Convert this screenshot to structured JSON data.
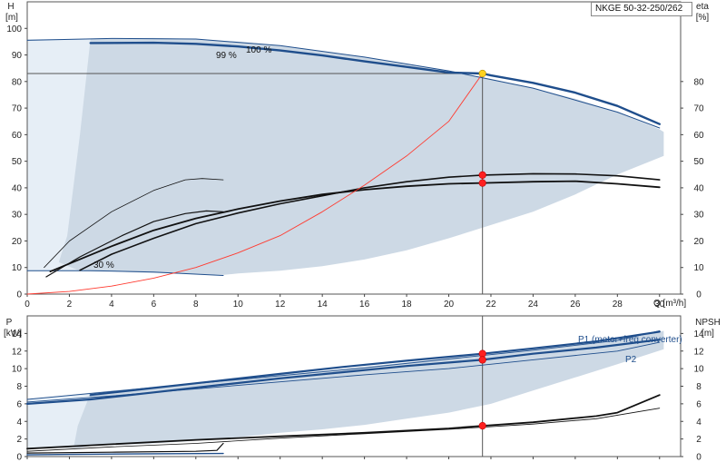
{
  "model": "NKGE 50-32-250/262",
  "colors": {
    "band": "#cdd9e5",
    "band_light": "#e6eef6",
    "curve_blue": "#1f4e8c",
    "curve_black": "#111111",
    "system_curve": "#ff3b30",
    "duty_point": "#ff2020",
    "eta_point": "#ffd21f"
  },
  "chart_data": [
    {
      "type": "line",
      "name": "head-efficiency",
      "ylabel": "H",
      "yunit": "[m]",
      "y2label": "eta",
      "y2unit": "[%]",
      "xlabel": "Q [m³/h]",
      "xlim": [
        0,
        31
      ],
      "ylim": [
        0,
        110
      ],
      "y2lim": [
        0,
        110
      ],
      "x_ticks": [
        "0",
        "2",
        "4",
        "6",
        "8",
        "10",
        "12",
        "14",
        "16",
        "18",
        "20",
        "22",
        "24",
        "26",
        "28",
        "30"
      ],
      "y_ticks": [
        "0",
        "10",
        "20",
        "30",
        "40",
        "50",
        "60",
        "70",
        "80",
        "90",
        "100"
      ],
      "y2_ticks": [
        "0",
        "10",
        "20",
        "30",
        "40",
        "50",
        "60",
        "70",
        "80"
      ],
      "annotations": {
        "eta99": "99 %",
        "eta100": "100 %",
        "eta30": "30 %"
      },
      "operating_band": {
        "upper": [
          [
            0,
            95.5
          ],
          [
            2,
            96
          ],
          [
            4,
            96.3
          ],
          [
            6,
            96.4
          ],
          [
            8,
            96
          ],
          [
            10,
            95
          ],
          [
            12,
            93.5
          ],
          [
            14,
            91.5
          ],
          [
            16,
            89.2
          ],
          [
            18,
            86.6
          ],
          [
            20,
            84
          ],
          [
            22,
            81
          ],
          [
            24,
            77.5
          ],
          [
            26,
            73.5
          ],
          [
            28,
            68.5
          ],
          [
            30,
            62
          ],
          [
            30.2,
            61
          ]
        ],
        "lower": [
          [
            30.2,
            52
          ],
          [
            28,
            45
          ],
          [
            26,
            37.5
          ],
          [
            24,
            31
          ],
          [
            22,
            26
          ],
          [
            20,
            21
          ],
          [
            18,
            16.5
          ],
          [
            16,
            13
          ],
          [
            14,
            10.5
          ],
          [
            12,
            8.8
          ],
          [
            10,
            7.8
          ],
          [
            9.3,
            7.2
          ],
          [
            8,
            7.6
          ],
          [
            6,
            8
          ],
          [
            4,
            8.5
          ],
          [
            2.9,
            8.6
          ],
          [
            2.5,
            8.7
          ],
          [
            0,
            8.8
          ]
        ],
        "light_corner": [
          [
            0,
            8.8
          ],
          [
            0,
            96
          ],
          [
            3,
            96
          ],
          [
            2.5,
            60
          ],
          [
            1.9,
            22
          ],
          [
            1.5,
            12
          ],
          [
            2.5,
            8.7
          ]
        ]
      },
      "series": [
        {
          "name": "100 %",
          "color": "#1f4e8c",
          "width": 2.4,
          "points": [
            [
              3,
              94.5
            ],
            [
              6,
              94.6
            ],
            [
              8,
              94.2
            ],
            [
              10,
              93.2
            ],
            [
              12,
              91.7
            ],
            [
              14,
              89.8
            ],
            [
              16,
              87.6
            ],
            [
              18,
              85.5
            ],
            [
              20,
              83.4
            ],
            [
              21.6,
              83
            ],
            [
              22,
              82.3
            ],
            [
              24,
              79.5
            ],
            [
              26,
              75.8
            ],
            [
              28,
              70.8
            ],
            [
              30,
              64
            ]
          ]
        },
        {
          "name": "max",
          "color": "#1f4e8c",
          "width": 1,
          "points": [
            [
              0,
              95.5
            ],
            [
              4,
              96.2
            ],
            [
              8,
              96
            ],
            [
              12,
              93.5
            ],
            [
              16,
              89.2
            ],
            [
              20,
              84
            ],
            [
              24,
              77.5
            ],
            [
              28,
              68.5
            ],
            [
              30,
              62.5
            ]
          ]
        },
        {
          "name": "min-head",
          "color": "#1f4e8c",
          "width": 1,
          "points": [
            [
              0,
              8.8
            ],
            [
              3,
              8.8
            ],
            [
              6,
              8.3
            ],
            [
              9.3,
              7
            ]
          ]
        },
        {
          "name": "eta-main",
          "color": "#111111",
          "width": 1.8,
          "points": [
            [
              1.1,
              8.5
            ],
            [
              4,
              18
            ],
            [
              6,
              24
            ],
            [
              8,
              28.5
            ],
            [
              10,
              32
            ],
            [
              12,
              35
            ],
            [
              14,
              37.5
            ],
            [
              16,
              39.3
            ],
            [
              18,
              40.6
            ],
            [
              20,
              41.5
            ],
            [
              21.6,
              41.8
            ],
            [
              24,
              42.3
            ],
            [
              26,
              42.5
            ],
            [
              28,
              41.5
            ],
            [
              30,
              40.2
            ]
          ]
        },
        {
          "name": "eta-upper",
          "color": "#111111",
          "width": 1.6,
          "points": [
            [
              2.5,
              9
            ],
            [
              4,
              15
            ],
            [
              6,
              21
            ],
            [
              8,
              26.5
            ],
            [
              10,
              30.5
            ],
            [
              12,
              34
            ],
            [
              14,
              37
            ],
            [
              16,
              40
            ],
            [
              18,
              42.3
            ],
            [
              20,
              44
            ],
            [
              21.6,
              44.8
            ],
            [
              24,
              45.3
            ],
            [
              26,
              45.2
            ],
            [
              28,
              44.5
            ],
            [
              30,
              43
            ]
          ]
        },
        {
          "name": "eta-part-1",
          "color": "#111111",
          "width": 0.8,
          "points": [
            [
              0.8,
              10
            ],
            [
              2,
              20
            ],
            [
              4,
              31
            ],
            [
              6,
              39
            ],
            [
              7.5,
              43
            ],
            [
              8.3,
              43.5
            ],
            [
              9.3,
              43
            ]
          ]
        },
        {
          "name": "eta-part-2",
          "color": "#111111",
          "width": 1.2,
          "points": [
            [
              0.9,
              6.5
            ],
            [
              2.5,
              14
            ],
            [
              4.5,
              22
            ],
            [
              6,
              27.3
            ],
            [
              7.5,
              30.3
            ],
            [
              8.5,
              31.3
            ],
            [
              9.3,
              31
            ]
          ]
        },
        {
          "name": "system",
          "color": "#ff3b30",
          "width": 0.9,
          "points": [
            [
              0,
              0
            ],
            [
              2,
              1
            ],
            [
              4,
              3
            ],
            [
              6,
              6
            ],
            [
              8,
              10
            ],
            [
              10,
              15.5
            ],
            [
              12,
              22
            ],
            [
              14,
              31
            ],
            [
              16,
              41
            ],
            [
              18,
              52
            ],
            [
              20,
              65
            ],
            [
              21.6,
              83
            ]
          ]
        }
      ],
      "duty_lines": {
        "x": 21.6,
        "y": 83
      },
      "points": [
        {
          "x": 21.6,
          "y": 83,
          "color": "#ffd21f"
        },
        {
          "x": 21.6,
          "y": 44.8,
          "color": "#ff2020"
        },
        {
          "x": 21.6,
          "y": 41.8,
          "color": "#ff2020"
        }
      ]
    },
    {
      "type": "line",
      "name": "power-npsh",
      "ylabel": "P",
      "yunit": "[kW]",
      "y2label": "NPSH",
      "y2unit": "[m]",
      "xlim": [
        0,
        31
      ],
      "ylim": [
        0,
        16
      ],
      "y2lim": [
        0,
        16
      ],
      "y_ticks": [
        "0",
        "2",
        "4",
        "6",
        "8",
        "10",
        "12",
        "14"
      ],
      "y2_ticks": [
        "0",
        "2",
        "4",
        "6",
        "8",
        "10",
        "12",
        "14"
      ],
      "labels": {
        "p1": "P1 (motor+freq.converter)",
        "p2": "P2"
      },
      "operating_band": {
        "upper": [
          [
            0,
            6.5
          ],
          [
            4,
            7.5
          ],
          [
            8,
            8.4
          ],
          [
            12,
            9.3
          ],
          [
            16,
            10.2
          ],
          [
            20,
            11.2
          ],
          [
            24,
            12.2
          ],
          [
            28,
            13.3
          ],
          [
            30.2,
            14.3
          ]
        ],
        "lower": [
          [
            30.2,
            12.2
          ],
          [
            28,
            10.5
          ],
          [
            26,
            9
          ],
          [
            24,
            7.5
          ],
          [
            22,
            6
          ],
          [
            20,
            5
          ],
          [
            18,
            4.3
          ],
          [
            16,
            3.6
          ],
          [
            14,
            3.1
          ],
          [
            12,
            2.7
          ],
          [
            10,
            2.2
          ],
          [
            8,
            1.8
          ],
          [
            6,
            1.5
          ],
          [
            4,
            1.3
          ],
          [
            3,
            1.2
          ],
          [
            2.5,
            1.0
          ],
          [
            0,
            0.9
          ]
        ],
        "light_corner": [
          [
            0,
            0.9
          ],
          [
            0,
            6.5
          ],
          [
            3,
            7.2
          ],
          [
            2.4,
            3.5
          ],
          [
            2.2,
            1.0
          ]
        ]
      },
      "series": [
        {
          "name": "P1",
          "color": "#1f4e8c",
          "width": 2.2,
          "points": [
            [
              3,
              7
            ],
            [
              6,
              7.8
            ],
            [
              9,
              8.6
            ],
            [
              12,
              9.4
            ],
            [
              15,
              10.2
            ],
            [
              18,
              10.9
            ],
            [
              21.6,
              11.7
            ],
            [
              24,
              12.3
            ],
            [
              27,
              13.1
            ],
            [
              30,
              14.2
            ]
          ]
        },
        {
          "name": "P1-max",
          "color": "#1f4e8c",
          "width": 0.9,
          "points": [
            [
              0,
              6.5
            ],
            [
              4,
              7.4
            ],
            [
              8,
              8.3
            ],
            [
              12,
              9.2
            ],
            [
              16,
              10.1
            ],
            [
              20,
              11.1
            ],
            [
              24,
              12.1
            ],
            [
              28,
              13.2
            ],
            [
              30,
              14.3
            ]
          ]
        },
        {
          "name": "P2",
          "color": "#1f4e8c",
          "width": 2.2,
          "points": [
            [
              0,
              6
            ],
            [
              3,
              6.5
            ],
            [
              6,
              7.3
            ],
            [
              9,
              8.1
            ],
            [
              12,
              8.9
            ],
            [
              15,
              9.6
            ],
            [
              18,
              10.3
            ],
            [
              21.6,
              11
            ],
            [
              24,
              11.7
            ],
            [
              27,
              12.4
            ],
            [
              30,
              13.3
            ]
          ]
        },
        {
          "name": "P2-thin",
          "color": "#1f4e8c",
          "width": 0.9,
          "points": [
            [
              0,
              6.2
            ],
            [
              4,
              6.9
            ],
            [
              8,
              7.7
            ],
            [
              12,
              8.5
            ],
            [
              16,
              9.3
            ],
            [
              20,
              10
            ],
            [
              24,
              11
            ],
            [
              28,
              12
            ],
            [
              30,
              13
            ]
          ]
        },
        {
          "name": "P-min",
          "color": "#1f4e8c",
          "width": 1.4,
          "points": [
            [
              0,
              0.2
            ],
            [
              2,
              0.25
            ],
            [
              5,
              0.3
            ],
            [
              9.3,
              0.35
            ]
          ]
        },
        {
          "name": "NPSH",
          "color": "#111111",
          "width": 1.8,
          "points": [
            [
              0,
              0.9
            ],
            [
              4,
              1.4
            ],
            [
              8,
              1.9
            ],
            [
              12,
              2.3
            ],
            [
              16,
              2.7
            ],
            [
              20,
              3.2
            ],
            [
              21.6,
              3.5
            ],
            [
              24,
              3.9
            ],
            [
              27,
              4.6
            ],
            [
              28,
              5
            ],
            [
              30,
              7
            ]
          ]
        },
        {
          "name": "NPSH-thin",
          "color": "#111111",
          "width": 0.8,
          "points": [
            [
              0,
              0.6
            ],
            [
              4,
              1.1
            ],
            [
              8,
              1.5
            ],
            [
              12,
              2.1
            ],
            [
              16,
              2.6
            ],
            [
              20,
              3.1
            ],
            [
              24,
              3.7
            ],
            [
              27,
              4.3
            ],
            [
              30,
              5.5
            ]
          ]
        },
        {
          "name": "NPSH-min",
          "color": "#111111",
          "width": 1.2,
          "points": [
            [
              0,
              0.4
            ],
            [
              4,
              0.5
            ],
            [
              8,
              0.6
            ],
            [
              9,
              0.7
            ],
            [
              9.3,
              1.5
            ]
          ]
        }
      ],
      "duty_lines": {
        "x": 21.6
      },
      "points": [
        {
          "x": 21.6,
          "y": 11.7,
          "color": "#ff2020"
        },
        {
          "x": 21.6,
          "y": 11.0,
          "color": "#ff2020"
        },
        {
          "x": 21.6,
          "y": 3.5,
          "color": "#ff2020"
        }
      ]
    }
  ]
}
